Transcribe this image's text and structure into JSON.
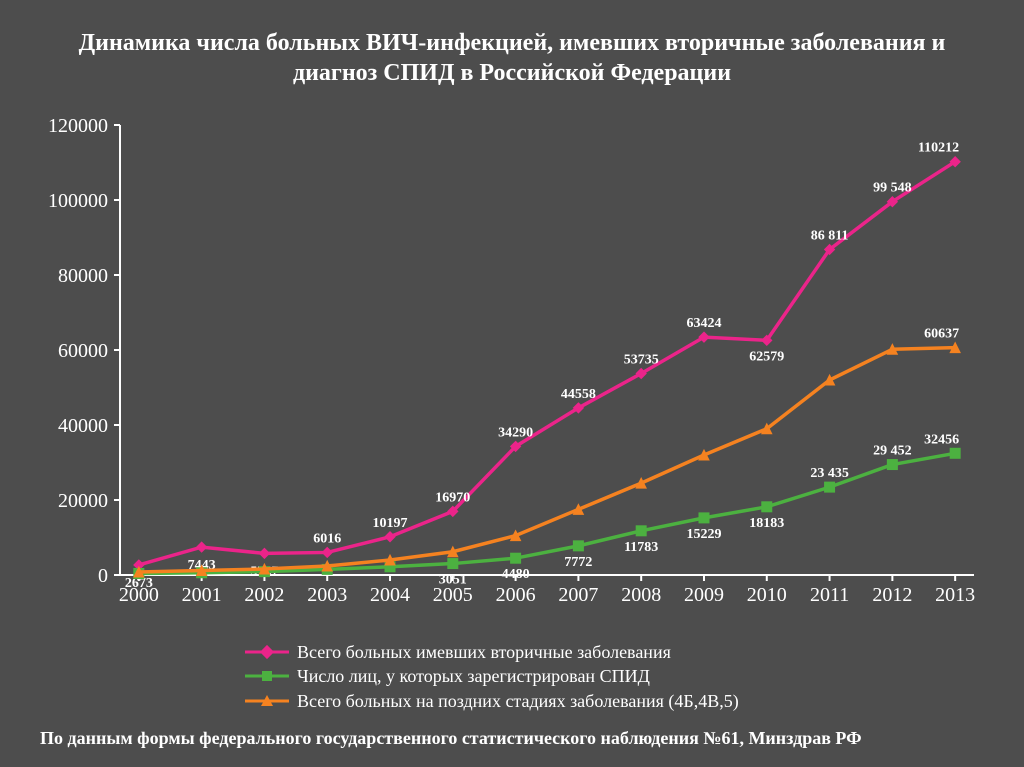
{
  "title": "Динамика числа больных ВИЧ-инфекцией, имевших вторичные заболевания и диагноз СПИД в Российской Федерации",
  "footer": "По данным формы федерального государственного статистического наблюдения №61, Минздрав РФ",
  "chart": {
    "type": "line",
    "background_color": "#4d4d4d",
    "axis_color": "#ffffff",
    "tick_fontsize": 20,
    "datalabel_fontsize": 14,
    "datalabel_color": "#ffffff",
    "line_width": 3.5,
    "marker_size": 10,
    "x_categories": [
      "2000",
      "2001",
      "2002",
      "2003",
      "2004",
      "2005",
      "2006",
      "2007",
      "2008",
      "2009",
      "2010",
      "2011",
      "2012",
      "2013"
    ],
    "ylim": [
      0,
      120000
    ],
    "ytick_step": 20000,
    "yticks": [
      0,
      20000,
      40000,
      60000,
      80000,
      100000,
      120000
    ],
    "series": [
      {
        "name": "Всего больных имевших вторичные заболевания",
        "color": "#eb248a",
        "marker": "diamond",
        "values": [
          2673,
          7443,
          5767,
          6016,
          10197,
          16970,
          34290,
          44558,
          53735,
          63424,
          62579,
          86811,
          99548,
          110212
        ],
        "labels": [
          "2673",
          "7443",
          "5767",
          "6016",
          "10197",
          "16970",
          "34290",
          "44558",
          "53735",
          "63424",
          "62579",
          "86 811",
          "99 548",
          "110212"
        ],
        "label_pos": [
          "below",
          "below",
          "below",
          "above",
          "above",
          "above",
          "above",
          "above",
          "above",
          "above",
          "below",
          "above",
          "above",
          "above"
        ]
      },
      {
        "name": "Число лиц, у которых зарегистрирован СПИД",
        "color": "#4cb140",
        "marker": "square",
        "values": [
          400,
          600,
          900,
          1500,
          2200,
          3051,
          4480,
          7772,
          11783,
          15229,
          18183,
          23435,
          29452,
          32456
        ],
        "labels": [
          "",
          "",
          "",
          "",
          "",
          "3051",
          "4480",
          "7772",
          "11783",
          "15229",
          "18183",
          "23 435",
          "29 452",
          "32456"
        ],
        "label_pos": [
          "",
          "",
          "",
          "",
          "",
          "below",
          "below",
          "below",
          "below",
          "below",
          "below",
          "above",
          "above",
          "above"
        ]
      },
      {
        "name": "Всего больных на поздних стадиях заболевания (4Б,4В,5)",
        "color": "#f58220",
        "marker": "triangle",
        "values": [
          800,
          1200,
          1600,
          2400,
          4000,
          6200,
          10500,
          17500,
          24500,
          32000,
          39000,
          52000,
          60200,
          60637
        ],
        "labels": [
          "",
          "",
          "",
          "",
          "",
          "",
          "",
          "",
          "",
          "",
          "",
          "",
          "",
          "60637"
        ],
        "label_pos": [
          "",
          "",
          "",
          "",
          "",
          "",
          "",
          "",
          "",
          "",
          "",
          "",
          "",
          "above"
        ]
      }
    ],
    "legend": {
      "fontsize": 18,
      "text_color": "#ffffff"
    }
  }
}
